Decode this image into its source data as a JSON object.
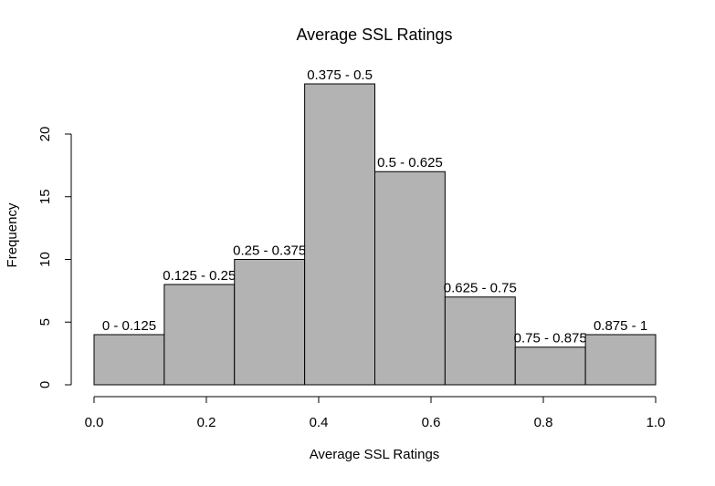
{
  "chart_data": {
    "type": "histogram",
    "title": "Average SSL Ratings",
    "x_label": "Average SSL Ratings",
    "y_label": "Frequency",
    "bins": [
      0,
      0.125,
      0.25,
      0.375,
      0.5,
      0.625,
      0.75,
      0.875,
      1
    ],
    "values": [
      4,
      8,
      10,
      24,
      17,
      7,
      3,
      4
    ],
    "bar_labels": [
      "0 - 0.125",
      "0.125 - 0.25",
      "0.25 - 0.375",
      "0.375 - 0.5",
      "0.5 - 0.625",
      "0.625 - 0.75",
      "0.75 - 0.875",
      "0.875 - 1"
    ],
    "color": "#b3b3b3",
    "xlim": [
      0,
      1
    ],
    "xticks": [
      {
        "value": 0,
        "label": "0.0"
      },
      0.2,
      0.4,
      0.6,
      0.8,
      {
        "value": 1,
        "label": "1.0"
      }
    ],
    "ylim": [
      0,
      24
    ],
    "yticks": [
      0,
      5,
      10,
      15,
      20
    ]
  }
}
